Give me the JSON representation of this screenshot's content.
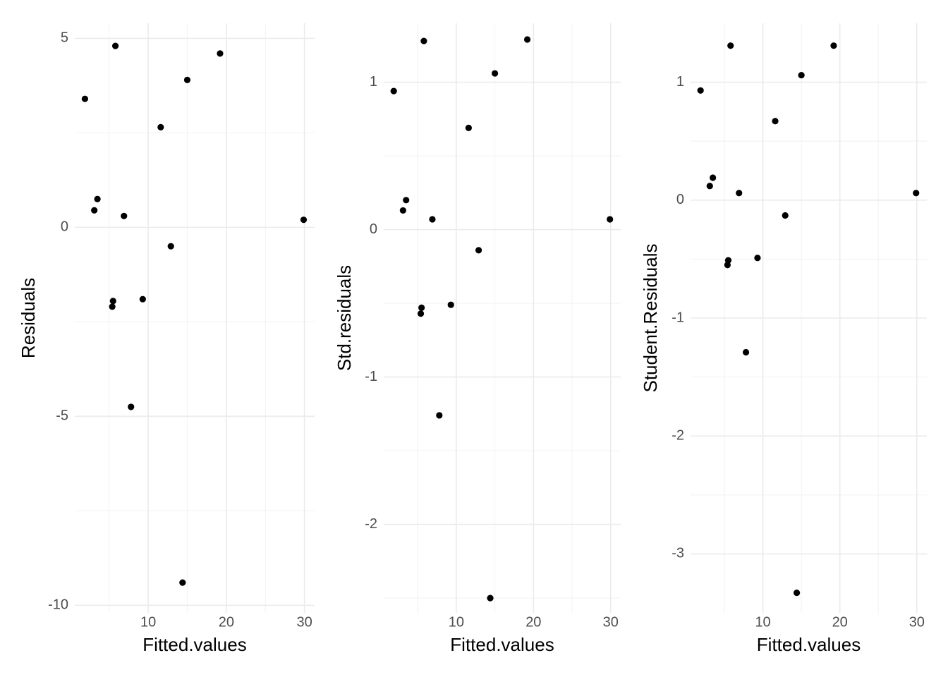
{
  "chart_data": [
    {
      "type": "scatter",
      "title": "",
      "xlabel": "Fitted.values",
      "ylabel": "Residuals",
      "xlim": [
        0.6,
        31.3
      ],
      "ylim": [
        -10.2,
        5.4
      ],
      "x_ticks": [
        10,
        20,
        30
      ],
      "x_tick_labels": [
        "10",
        "20",
        "30"
      ],
      "y_ticks": [
        -10,
        -5,
        0,
        5
      ],
      "y_tick_labels": [
        "-10",
        "-5",
        "0",
        "5"
      ],
      "grid": true,
      "point_color": "#000000",
      "x": [
        1.9,
        3.1,
        3.5,
        5.4,
        5.5,
        5.8,
        6.9,
        7.8,
        9.3,
        11.6,
        12.9,
        14.4,
        15.0,
        19.2,
        29.9
      ],
      "y": [
        3.4,
        0.45,
        0.75,
        -2.1,
        -1.95,
        4.8,
        0.3,
        -4.75,
        -1.9,
        2.65,
        -0.5,
        -9.4,
        3.9,
        4.6,
        0.2
      ]
    },
    {
      "type": "scatter",
      "title": "",
      "xlabel": "Fitted.values",
      "ylabel": "Std.residuals",
      "xlim": [
        0.6,
        31.3
      ],
      "ylim": [
        -2.6,
        1.4
      ],
      "x_ticks": [
        10,
        20,
        30
      ],
      "x_tick_labels": [
        "10",
        "20",
        "30"
      ],
      "y_ticks": [
        -2,
        -1,
        0,
        1
      ],
      "y_tick_labels": [
        "-2",
        "-1",
        "0",
        "1"
      ],
      "grid": true,
      "point_color": "#000000",
      "x": [
        1.9,
        3.1,
        3.5,
        5.4,
        5.5,
        5.8,
        6.9,
        7.8,
        9.3,
        11.6,
        12.9,
        14.4,
        15.0,
        19.2,
        29.9
      ],
      "y": [
        0.94,
        0.13,
        0.2,
        -0.57,
        -0.53,
        1.28,
        0.07,
        -1.26,
        -0.51,
        0.69,
        -0.14,
        -2.5,
        1.06,
        1.29,
        0.07
      ]
    },
    {
      "type": "scatter",
      "title": "",
      "xlabel": "Fitted.values",
      "ylabel": "Student.Residuals",
      "xlim": [
        0.6,
        31.3
      ],
      "ylim": [
        -3.5,
        1.5
      ],
      "x_ticks": [
        10,
        20,
        30
      ],
      "x_tick_labels": [
        "10",
        "20",
        "30"
      ],
      "y_ticks": [
        -3,
        -2,
        -1,
        0,
        1
      ],
      "y_tick_labels": [
        "-3",
        "-2",
        "-1",
        "0",
        "1"
      ],
      "grid": true,
      "point_color": "#000000",
      "x": [
        1.9,
        3.1,
        3.5,
        5.4,
        5.5,
        5.8,
        6.9,
        7.8,
        9.3,
        11.6,
        12.9,
        14.4,
        15.0,
        19.2,
        29.9
      ],
      "y": [
        0.93,
        0.12,
        0.19,
        -0.55,
        -0.51,
        1.31,
        0.06,
        -1.29,
        -0.49,
        0.67,
        -0.13,
        -3.33,
        1.06,
        1.31,
        0.06
      ]
    }
  ]
}
